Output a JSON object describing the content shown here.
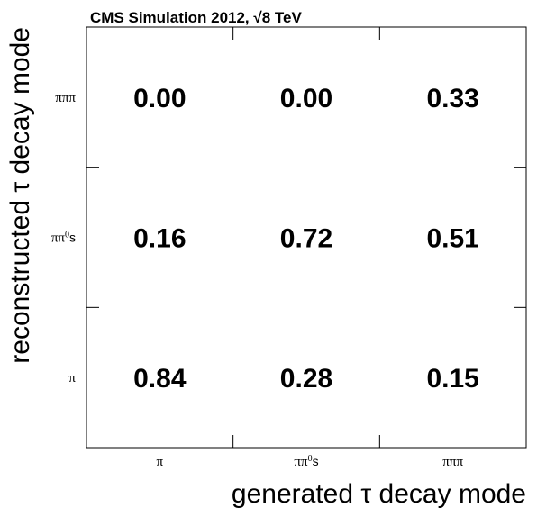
{
  "chart_data": {
    "type": "table",
    "title": "CMS Simulation 2012,  √8 TeV",
    "title_parts": {
      "prefix": "CMS Simulation 2012,  ",
      "root": "8",
      "suffix": " TeV"
    },
    "xlabel": "generated τ decay mode",
    "ylabel": "reconstructed τ decay mode",
    "x_categories": [
      {
        "base": "π",
        "sup": "",
        "tail": ""
      },
      {
        "base": "ππ",
        "sup": "0",
        "tail": "s"
      },
      {
        "base": "πππ",
        "sup": "",
        "tail": ""
      }
    ],
    "y_categories": [
      {
        "base": "π",
        "sup": "",
        "tail": ""
      },
      {
        "base": "ππ",
        "sup": "0",
        "tail": "s"
      },
      {
        "base": "πππ",
        "sup": "",
        "tail": ""
      }
    ],
    "values": [
      [
        0.84,
        0.28,
        0.15
      ],
      [
        0.16,
        0.72,
        0.51
      ],
      [
        0.0,
        0.0,
        0.33
      ]
    ],
    "value_format_decimals": 2
  }
}
